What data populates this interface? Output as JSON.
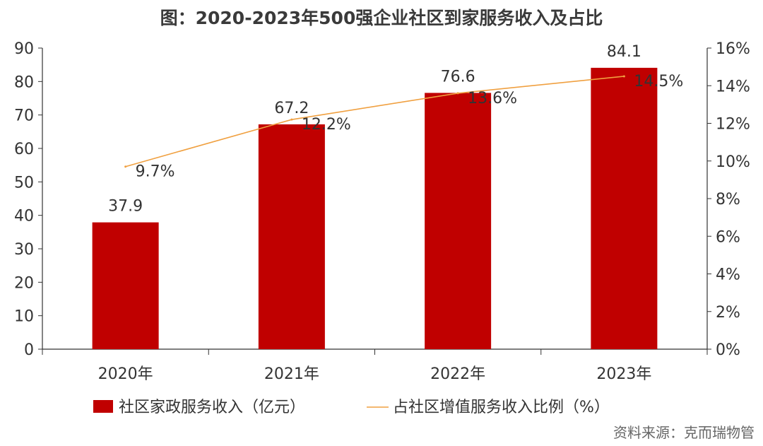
{
  "chart_data": {
    "type": "bar",
    "title": "图：2020-2023年500强企业社区到家服务收入及占比",
    "categories": [
      "2020年",
      "2021年",
      "2022年",
      "2023年"
    ],
    "series": [
      {
        "name": "社区家政服务收入（亿元）",
        "type": "bar",
        "axis": "left",
        "color": "#c00000",
        "values": [
          37.9,
          67.2,
          76.6,
          84.1
        ],
        "labels": [
          "37.9",
          "67.2",
          "76.6",
          "84.1"
        ]
      },
      {
        "name": "占社区增值服务收入比例（%）",
        "type": "line",
        "axis": "right",
        "color": "#f0a040",
        "values": [
          9.7,
          12.2,
          13.6,
          14.5
        ],
        "labels": [
          "9.7%",
          "12.2%",
          "13.6%",
          "14.5%"
        ]
      }
    ],
    "y_left": {
      "min": 0,
      "max": 90,
      "ticks": [
        0,
        10,
        20,
        30,
        40,
        50,
        60,
        70,
        80,
        90
      ],
      "tick_labels": [
        "0",
        "10",
        "20",
        "30",
        "40",
        "50",
        "60",
        "70",
        "80",
        "90"
      ]
    },
    "y_right": {
      "min": 0,
      "max": 16,
      "ticks": [
        0,
        2,
        4,
        6,
        8,
        10,
        12,
        14,
        16
      ],
      "tick_labels": [
        "0%",
        "2%",
        "4%",
        "6%",
        "8%",
        "10%",
        "12%",
        "14%",
        "16%"
      ]
    },
    "grid": false,
    "legend_position": "bottom",
    "source": "资料来源：克而瑞物管"
  }
}
